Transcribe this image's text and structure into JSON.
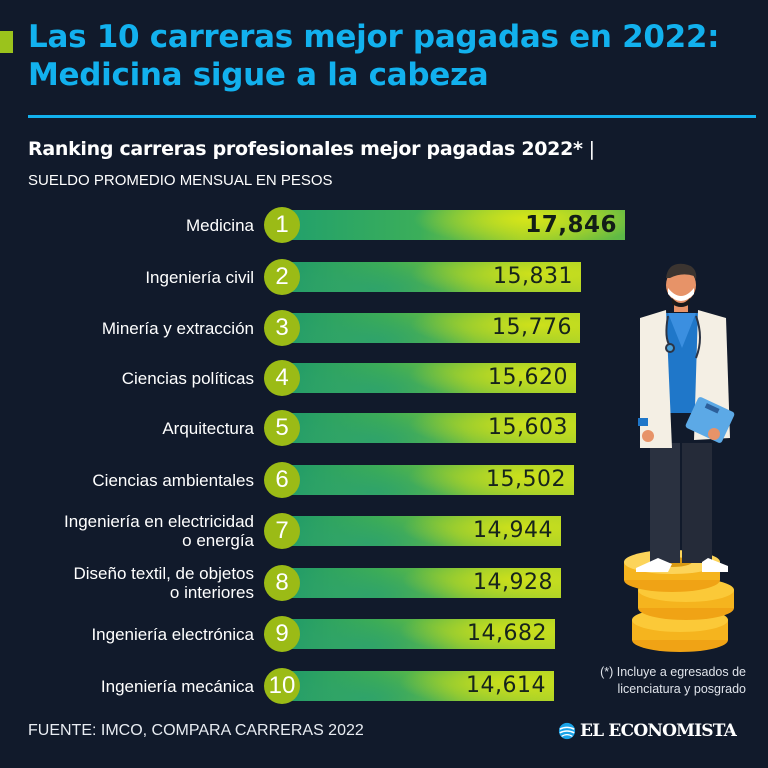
{
  "header": {
    "title": "Las 10 carreras mejor pagadas en 2022: Medicina sigue a la cabeza",
    "subtitle": "Ranking carreras profesionales mejor pagadas 2022*",
    "subtitle_separator": "|",
    "units": "SUELDO PROMEDIO MENSUAL EN PESOS"
  },
  "colors": {
    "background": "#111a2b",
    "title": "#12b1ee",
    "accent": "#9bc31c",
    "badge": "#9bbb16",
    "bar_start": "#1f9a6b",
    "bar_end": "#a9d12a"
  },
  "rows": [
    {
      "rank": "1",
      "label_lines": [
        "Medicina"
      ],
      "value": "17,846"
    },
    {
      "rank": "2",
      "label_lines": [
        "Ingeniería civil"
      ],
      "value": "15,831"
    },
    {
      "rank": "3",
      "label_lines": [
        "Minería y extracción"
      ],
      "value": "15,776"
    },
    {
      "rank": "4",
      "label_lines": [
        "Ciencias políticas"
      ],
      "value": "15,620"
    },
    {
      "rank": "5",
      "label_lines": [
        "Arquitectura"
      ],
      "value": "15,603"
    },
    {
      "rank": "6",
      "label_lines": [
        "Ciencias ambientales"
      ],
      "value": "15,502"
    },
    {
      "rank": "7",
      "label_lines": [
        "Ingeniería en electricidad",
        "o energía"
      ],
      "value": "14,944"
    },
    {
      "rank": "8",
      "label_lines": [
        "Diseño textil, de objetos",
        "o interiores"
      ],
      "value": "14,928"
    },
    {
      "rank": "9",
      "label_lines": [
        "Ingeniería electrónica"
      ],
      "value": "14,682"
    },
    {
      "rank": "10",
      "label_lines": [
        "Ingeniería mecánica"
      ],
      "value": "14,614"
    }
  ],
  "chart_data": {
    "type": "bar",
    "orientation": "horizontal",
    "title": "Ranking carreras profesionales mejor pagadas 2022*",
    "subtitle": "SUELDO PROMEDIO MENSUAL EN PESOS",
    "categories": [
      "Medicina",
      "Ingeniería civil",
      "Minería y extracción",
      "Ciencias políticas",
      "Arquitectura",
      "Ciencias ambientales",
      "Ingeniería en electricidad o energía",
      "Diseño textil, de objetos o interiores",
      "Ingeniería electrónica",
      "Ingeniería mecánica"
    ],
    "values": [
      17846,
      15831,
      15776,
      15620,
      15603,
      15502,
      14944,
      14928,
      14682,
      14614
    ],
    "ranks": [
      1,
      2,
      3,
      4,
      5,
      6,
      7,
      8,
      9,
      10
    ],
    "xlabel": "",
    "ylabel": "Sueldo promedio mensual (pesos)",
    "grid": false,
    "legend": "none",
    "data_labels": true
  },
  "footnote": {
    "lines": [
      "(*) Incluye a egresados de",
      "licenciatura y posgrado"
    ]
  },
  "footer": {
    "source": "FUENTE: IMCO, COMPARA CARRERAS 2022",
    "logo_text": "EL ECONOMISTA",
    "logo_icon": "globe-icon"
  },
  "illustration": {
    "subject": "doctor-standing-on-coins-icon"
  }
}
